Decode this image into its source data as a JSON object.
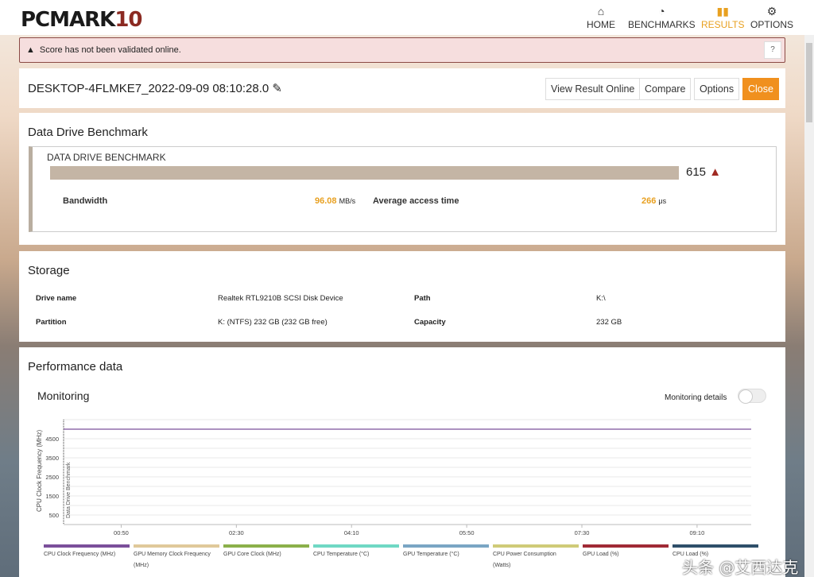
{
  "app": {
    "logo_main": "PCMARK",
    "logo_num": "10"
  },
  "nav": [
    {
      "label": "HOME",
      "icon": "home-icon"
    },
    {
      "label": "BENCHMARKS",
      "icon": "gauge-icon"
    },
    {
      "label": "RESULTS",
      "icon": "bar-chart-icon",
      "active": true
    },
    {
      "label": "OPTIONS",
      "icon": "gear-icon"
    }
  ],
  "alert": {
    "text": "Score has not been validated online.",
    "help": "?"
  },
  "result": {
    "name": "DESKTOP-4FLMKE7_2022-09-09 08:10:28.0",
    "buttons": {
      "view": "View Result Online",
      "compare": "Compare",
      "options": "Options",
      "close": "Close"
    }
  },
  "benchmark": {
    "section": "Data Drive Benchmark",
    "name": "DATA DRIVE BENCHMARK",
    "score": "615",
    "score_fill": 0.92,
    "bandwidth_label": "Bandwidth",
    "bandwidth": "96.08",
    "bandwidth_unit": "MB/s",
    "access_label": "Average access time",
    "access": "266",
    "access_unit": "μs"
  },
  "storage": {
    "section": "Storage",
    "drive_label": "Drive name",
    "drive": "Realtek RTL9210B SCSI Disk Device",
    "path_label": "Path",
    "path": "K:\\",
    "partition_label": "Partition",
    "partition": "K: (NTFS) 232 GB (232 GB free)",
    "capacity_label": "Capacity",
    "capacity": "232 GB"
  },
  "performance": {
    "section": "Performance data",
    "monitoring": "Monitoring",
    "details_label": "Monitoring details",
    "details_on": false
  },
  "chart_data": {
    "type": "line",
    "ylabel": "CPU Clock Frequency (MHz)",
    "marker": "Data Drive Benchmark",
    "ylim": [
      0,
      5500
    ],
    "yticks": [
      500,
      1500,
      2500,
      3500,
      4500
    ],
    "xlim": [
      0,
      597
    ],
    "xticks": [
      {
        "v": 50,
        "label": "00:50"
      },
      {
        "v": 150,
        "label": "02:30"
      },
      {
        "v": 250,
        "label": "04:10"
      },
      {
        "v": 350,
        "label": "05:50"
      },
      {
        "v": 450,
        "label": "07:30"
      },
      {
        "v": 550,
        "label": "09:10"
      }
    ],
    "series": [
      {
        "name": "CPU Clock Frequency (MHz)",
        "color": "#7b4f9a",
        "x": [
          0,
          597
        ],
        "y": [
          5000,
          5000
        ]
      }
    ],
    "legend": [
      {
        "name": "CPU Clock Frequency (MHz)",
        "color": "#7b4f9a"
      },
      {
        "name": "GPU Memory Clock Frequency (MHz)",
        "color": "#e0c99a"
      },
      {
        "name": "GPU Core Clock (MHz)",
        "color": "#8bb04a"
      },
      {
        "name": "CPU Temperature (°C)",
        "color": "#6fd8c4"
      },
      {
        "name": "GPU Temperature (°C)",
        "color": "#7aa6c4"
      },
      {
        "name": "CPU Power Consumption (Watts)",
        "color": "#cfcb78"
      },
      {
        "name": "GPU Load (%)",
        "color": "#a02a35"
      },
      {
        "name": "CPU Load (%)",
        "color": "#2f4f6a"
      }
    ]
  },
  "watermark": "头条 @艾西达克"
}
